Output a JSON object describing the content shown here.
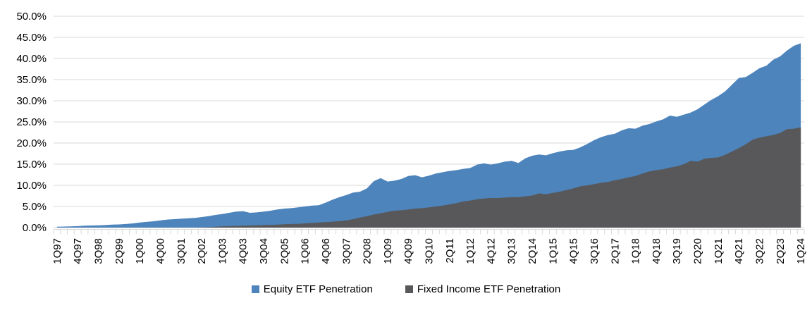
{
  "chart": {
    "legend": [
      {
        "label": "Equity ETF Penetration",
        "color": "#4E84BC"
      },
      {
        "label": "Fixed Income ETF Penetration",
        "color": "#58585A"
      }
    ]
  },
  "chart_data": {
    "type": "area",
    "overlapping": true,
    "title": "",
    "xlabel": "",
    "ylabel": "",
    "ylim": [
      0,
      50
    ],
    "y_tick_step": 5,
    "grid": true,
    "legend_position": "bottom",
    "y_tick_labels": [
      "50.0%",
      "45.0%",
      "40.0%",
      "35.0%",
      "30.0%",
      "25.0%",
      "20.0%",
      "15.0%",
      "10.0%",
      "5.0%",
      "0.0%"
    ],
    "x_label_every": 3,
    "x": [
      "1Q97",
      "2Q97",
      "3Q97",
      "4Q97",
      "1Q98",
      "2Q98",
      "3Q98",
      "4Q98",
      "1Q99",
      "2Q99",
      "3Q99",
      "4Q99",
      "1Q00",
      "2Q00",
      "3Q00",
      "4Q00",
      "1Q01",
      "2Q01",
      "3Q01",
      "4Q01",
      "1Q02",
      "2Q02",
      "3Q02",
      "4Q02",
      "1Q03",
      "2Q03",
      "3Q03",
      "4Q03",
      "1Q04",
      "2Q04",
      "3Q04",
      "4Q04",
      "1Q05",
      "2Q05",
      "3Q05",
      "4Q05",
      "1Q06",
      "2Q06",
      "3Q06",
      "4Q06",
      "1Q07",
      "2Q07",
      "3Q07",
      "4Q07",
      "1Q08",
      "2Q08",
      "3Q08",
      "4Q08",
      "1Q09",
      "2Q09",
      "3Q09",
      "4Q09",
      "1Q10",
      "2Q10",
      "3Q10",
      "4Q10",
      "1Q11",
      "2Q11",
      "3Q11",
      "4Q11",
      "1Q12",
      "2Q12",
      "3Q12",
      "4Q12",
      "1Q13",
      "2Q13",
      "3Q13",
      "4Q13",
      "1Q14",
      "2Q14",
      "3Q14",
      "4Q14",
      "1Q15",
      "2Q15",
      "3Q15",
      "4Q15",
      "1Q16",
      "2Q16",
      "3Q16",
      "4Q16",
      "1Q17",
      "2Q17",
      "3Q17",
      "4Q17",
      "1Q18",
      "2Q18",
      "3Q18",
      "4Q18",
      "1Q19",
      "2Q19",
      "3Q19",
      "4Q19",
      "1Q20",
      "2Q20",
      "3Q20",
      "4Q20",
      "1Q21",
      "2Q21",
      "3Q21",
      "4Q21",
      "1Q22",
      "2Q22",
      "3Q22",
      "4Q22",
      "1Q23",
      "2Q23",
      "3Q23",
      "4Q23",
      "1Q24"
    ],
    "series": [
      {
        "name": "Equity ETF Penetration",
        "color": "#4E84BC",
        "values": [
          0.2,
          0.25,
          0.3,
          0.35,
          0.45,
          0.5,
          0.55,
          0.6,
          0.7,
          0.75,
          0.85,
          1.0,
          1.2,
          1.35,
          1.5,
          1.7,
          1.9,
          2.0,
          2.1,
          2.2,
          2.3,
          2.5,
          2.7,
          3.0,
          3.2,
          3.5,
          3.8,
          3.9,
          3.5,
          3.6,
          3.8,
          4.0,
          4.3,
          4.5,
          4.6,
          4.8,
          5.0,
          5.2,
          5.3,
          5.9,
          6.6,
          7.2,
          7.7,
          8.3,
          8.5,
          9.3,
          11.0,
          11.7,
          10.9,
          11.1,
          11.5,
          12.2,
          12.4,
          11.9,
          12.3,
          12.8,
          13.1,
          13.4,
          13.6,
          13.9,
          14.1,
          14.9,
          15.2,
          14.9,
          15.2,
          15.6,
          15.8,
          15.3,
          16.4,
          17.0,
          17.3,
          17.1,
          17.6,
          18.0,
          18.3,
          18.4,
          19.0,
          19.8,
          20.7,
          21.4,
          21.9,
          22.2,
          23.0,
          23.5,
          23.4,
          24.1,
          24.5,
          25.1,
          25.6,
          26.5,
          26.2,
          26.7,
          27.2,
          28.0,
          29.1,
          30.2,
          31.1,
          32.2,
          33.8,
          35.4,
          35.6,
          36.6,
          37.7,
          38.3,
          39.7,
          40.5,
          41.9,
          43.0,
          43.6
        ]
      },
      {
        "name": "Fixed Income ETF Penetration",
        "color": "#58585A",
        "values": [
          0,
          0,
          0,
          0,
          0,
          0,
          0,
          0,
          0,
          0,
          0,
          0,
          0,
          0,
          0,
          0,
          0,
          0,
          0,
          0,
          0,
          0.05,
          0.1,
          0.2,
          0.3,
          0.35,
          0.4,
          0.45,
          0.5,
          0.55,
          0.6,
          0.65,
          0.7,
          0.8,
          0.85,
          0.9,
          1.0,
          1.1,
          1.2,
          1.3,
          1.4,
          1.55,
          1.7,
          2.0,
          2.4,
          2.7,
          3.1,
          3.4,
          3.7,
          4.0,
          4.1,
          4.3,
          4.5,
          4.6,
          4.8,
          5.0,
          5.2,
          5.5,
          5.8,
          6.2,
          6.4,
          6.7,
          6.9,
          7.0,
          7.0,
          7.1,
          7.2,
          7.2,
          7.4,
          7.6,
          8.1,
          7.9,
          8.2,
          8.5,
          8.9,
          9.3,
          9.8,
          10.0,
          10.3,
          10.6,
          10.8,
          11.2,
          11.5,
          11.9,
          12.2,
          12.8,
          13.3,
          13.6,
          13.8,
          14.2,
          14.5,
          15.0,
          15.8,
          15.6,
          16.3,
          16.5,
          16.6,
          17.2,
          18.0,
          18.8,
          19.7,
          20.8,
          21.3,
          21.6,
          21.9,
          22.4,
          23.3,
          23.4,
          23.7
        ]
      }
    ]
  }
}
